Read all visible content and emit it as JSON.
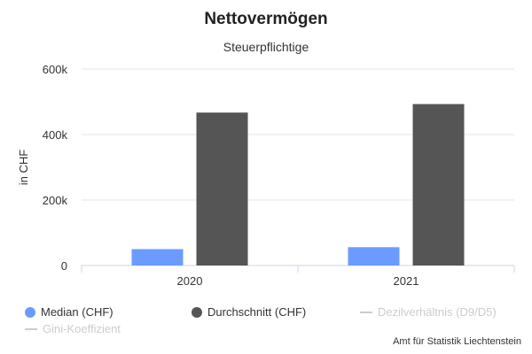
{
  "chart_data": {
    "type": "bar",
    "title": "Nettovermögen",
    "subtitle": "Steuerpflichtige",
    "ylabel": "in CHF",
    "xlabel": "",
    "categories": [
      "2020",
      "2021"
    ],
    "ylim": [
      0,
      600000
    ],
    "yticks": [
      0,
      200000,
      400000,
      600000
    ],
    "ytick_labels": [
      "0",
      "200k",
      "400k",
      "600k"
    ],
    "grid": true,
    "legend_position": "bottom",
    "series": [
      {
        "name": "Median (CHF)",
        "values": [
          50000,
          56000
        ],
        "color": "#6b9bff"
      },
      {
        "name": "Durchschnitt (CHF)",
        "values": [
          467000,
          493000
        ],
        "color": "#555555"
      }
    ],
    "hidden_series": [
      {
        "name": "Dezilverhältnis (D9/D5)",
        "color": "#cccccc"
      },
      {
        "name": "Gini-Koeffizient",
        "color": "#cccccc"
      }
    ]
  },
  "credits": "Amt für Statistik Liechtenstein"
}
